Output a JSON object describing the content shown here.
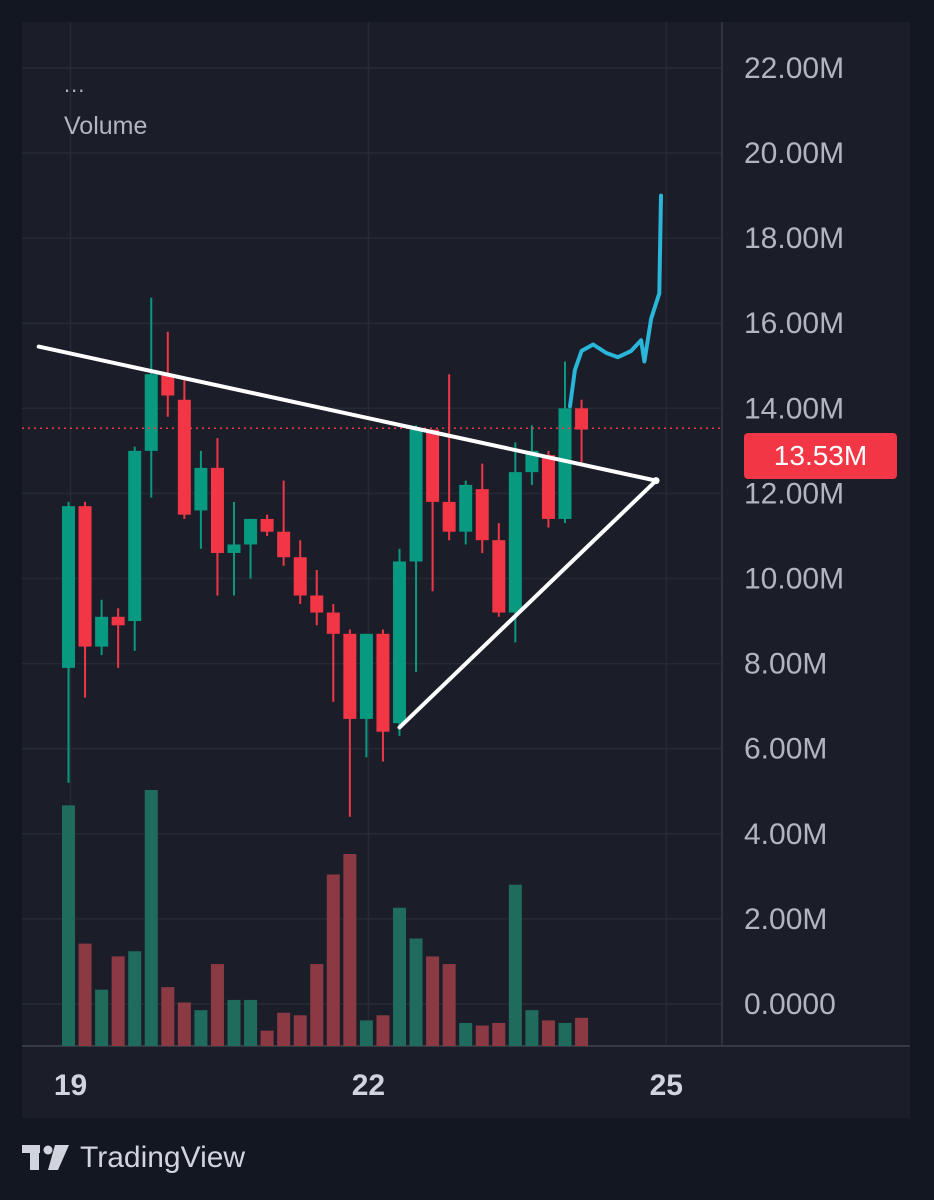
{
  "legend": {
    "menu": "...",
    "indicator": "Volume"
  },
  "price_badge": {
    "text": "13.53M",
    "color": "#f23645"
  },
  "brand": {
    "name": "TradingView",
    "icon": "tradingview-logo-icon"
  },
  "colors": {
    "up": "#089981",
    "down": "#f23645",
    "prediction": "#29b6d8",
    "trendline": "#ffffff"
  },
  "chart_data": {
    "type": "candlestick",
    "y_ticks": [
      "22.00M",
      "20.00M",
      "18.00M",
      "16.00M",
      "14.00M",
      "12.00M",
      "10.00M",
      "8.00M",
      "6.00M",
      "4.00M",
      "2.00M",
      "0.0000"
    ],
    "y_range": [
      0,
      22
    ],
    "x_ticks": [
      "19",
      "22",
      "25"
    ],
    "last_price": 13.53,
    "grid": true,
    "candles": [
      {
        "o": 7.9,
        "h": 11.8,
        "l": 5.2,
        "c": 11.7
      },
      {
        "o": 11.7,
        "h": 11.8,
        "l": 7.2,
        "c": 8.4
      },
      {
        "o": 8.4,
        "h": 9.5,
        "l": 8.2,
        "c": 9.1
      },
      {
        "o": 9.1,
        "h": 9.3,
        "l": 7.9,
        "c": 8.9
      },
      {
        "o": 9.0,
        "h": 13.1,
        "l": 8.3,
        "c": 13.0
      },
      {
        "o": 13.0,
        "h": 16.6,
        "l": 11.9,
        "c": 14.8
      },
      {
        "o": 14.8,
        "h": 15.8,
        "l": 13.8,
        "c": 14.3
      },
      {
        "o": 14.2,
        "h": 14.7,
        "l": 11.4,
        "c": 11.5
      },
      {
        "o": 11.6,
        "h": 13.0,
        "l": 10.7,
        "c": 12.6
      },
      {
        "o": 12.6,
        "h": 13.3,
        "l": 9.6,
        "c": 10.6
      },
      {
        "o": 10.6,
        "h": 11.8,
        "l": 9.6,
        "c": 10.8
      },
      {
        "o": 10.8,
        "h": 11.4,
        "l": 10.0,
        "c": 11.4
      },
      {
        "o": 11.4,
        "h": 11.5,
        "l": 11.0,
        "c": 11.1
      },
      {
        "o": 11.1,
        "h": 12.3,
        "l": 10.3,
        "c": 10.5
      },
      {
        "o": 10.5,
        "h": 10.9,
        "l": 9.4,
        "c": 9.6
      },
      {
        "o": 9.6,
        "h": 10.2,
        "l": 8.9,
        "c": 9.2
      },
      {
        "o": 9.2,
        "h": 9.4,
        "l": 7.1,
        "c": 8.7
      },
      {
        "o": 8.7,
        "h": 8.8,
        "l": 4.4,
        "c": 6.7
      },
      {
        "o": 6.7,
        "h": 8.7,
        "l": 5.8,
        "c": 8.7
      },
      {
        "o": 8.7,
        "h": 8.8,
        "l": 5.7,
        "c": 6.4
      },
      {
        "o": 6.6,
        "h": 10.7,
        "l": 6.3,
        "c": 10.4
      },
      {
        "o": 10.4,
        "h": 13.6,
        "l": 7.8,
        "c": 13.5
      },
      {
        "o": 13.5,
        "h": 13.5,
        "l": 9.7,
        "c": 11.8
      },
      {
        "o": 11.8,
        "h": 14.8,
        "l": 10.9,
        "c": 11.1
      },
      {
        "o": 11.1,
        "h": 12.3,
        "l": 10.8,
        "c": 12.2
      },
      {
        "o": 12.1,
        "h": 12.7,
        "l": 10.6,
        "c": 10.9
      },
      {
        "o": 10.9,
        "h": 11.3,
        "l": 9.1,
        "c": 9.2
      },
      {
        "o": 9.2,
        "h": 13.2,
        "l": 8.5,
        "c": 12.5
      },
      {
        "o": 12.5,
        "h": 13.6,
        "l": 12.2,
        "c": 13.0
      },
      {
        "o": 12.9,
        "h": 13.0,
        "l": 11.2,
        "c": 11.4
      },
      {
        "o": 11.4,
        "h": 15.1,
        "l": 11.3,
        "c": 14.0
      },
      {
        "o": 14.0,
        "h": 14.2,
        "l": 12.7,
        "c": 13.5
      }
    ],
    "volume_relative": [
      0.94,
      0.4,
      0.22,
      0.35,
      0.37,
      1.0,
      0.23,
      0.17,
      0.14,
      0.32,
      0.18,
      0.18,
      0.06,
      0.13,
      0.12,
      0.32,
      0.67,
      0.75,
      0.1,
      0.12,
      0.54,
      0.42,
      0.35,
      0.32,
      0.09,
      0.08,
      0.09,
      0.63,
      0.14,
      0.1,
      0.09,
      0.11
    ],
    "annotations": {
      "upper_trendline": [
        {
          "i": -1.8,
          "v": 15.45
        },
        {
          "i": 35.5,
          "v": 12.3
        }
      ],
      "lower_trendline": [
        {
          "i": 20.0,
          "v": 6.5
        },
        {
          "i": 35.5,
          "v": 12.3
        }
      ],
      "prediction_path": [
        {
          "i": 30.3,
          "v": 14.05
        },
        {
          "i": 30.6,
          "v": 14.9
        },
        {
          "i": 31.0,
          "v": 15.35
        },
        {
          "i": 31.7,
          "v": 15.5
        },
        {
          "i": 32.5,
          "v": 15.3
        },
        {
          "i": 33.2,
          "v": 15.2
        },
        {
          "i": 34.0,
          "v": 15.35
        },
        {
          "i": 34.6,
          "v": 15.6
        },
        {
          "i": 34.8,
          "v": 15.1
        },
        {
          "i": 35.2,
          "v": 16.1
        },
        {
          "i": 35.7,
          "v": 16.7
        },
        {
          "i": 35.8,
          "v": 19.0
        }
      ]
    }
  }
}
